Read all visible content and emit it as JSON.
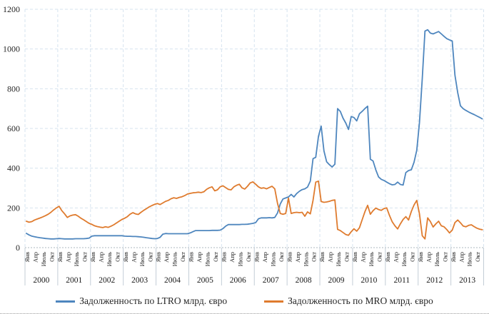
{
  "chart_data": {
    "type": "line",
    "title": "",
    "xlabel": "",
    "ylabel": "",
    "grid": true,
    "legend_position": "bottom",
    "y_axis": {
      "min": 0,
      "max": 1200,
      "step": 200,
      "ticks": [
        0,
        200,
        400,
        600,
        800,
        1000,
        1200
      ]
    },
    "quarter_labels": [
      "Янв",
      "Апр",
      "Июль",
      "Окт"
    ],
    "years": [
      2000,
      2001,
      2002,
      2003,
      2004,
      2005,
      2006,
      2007,
      2008,
      2009,
      2010,
      2011,
      2012,
      2013
    ],
    "x_unit": "month",
    "series": [
      {
        "name": "Задолженность по LTRO млрд. євро",
        "color": "#4e86be",
        "values": [
          72,
          64,
          58,
          55,
          52,
          50,
          48,
          46,
          45,
          44,
          44,
          45,
          46,
          45,
          44,
          44,
          44,
          44,
          45,
          45,
          45,
          45,
          46,
          48,
          58,
          60,
          60,
          60,
          60,
          60,
          60,
          60,
          60,
          60,
          60,
          60,
          58,
          57,
          57,
          56,
          56,
          55,
          54,
          52,
          50,
          48,
          46,
          45,
          46,
          52,
          68,
          71,
          70,
          70,
          70,
          70,
          70,
          70,
          70,
          70,
          74,
          80,
          86,
          86,
          86,
          86,
          86,
          86,
          87,
          87,
          87,
          88,
          96,
          108,
          116,
          116,
          116,
          116,
          116,
          117,
          117,
          118,
          120,
          122,
          126,
          145,
          150,
          150,
          150,
          151,
          150,
          152,
          175,
          220,
          245,
          250,
          255,
          268,
          255,
          272,
          284,
          292,
          296,
          305,
          335,
          448,
          455,
          560,
          612,
          487,
          432,
          418,
          406,
          420,
          700,
          686,
          652,
          627,
          595,
          660,
          655,
          638,
          674,
          686,
          700,
          712,
          445,
          436,
          392,
          356,
          344,
          338,
          330,
          322,
          316,
          318,
          330,
          318,
          315,
          378,
          388,
          392,
          430,
          490,
          630,
          850,
          1090,
          1097,
          1080,
          1076,
          1082,
          1088,
          1076,
          1064,
          1052,
          1046,
          1040,
          868,
          780,
          714,
          700,
          691,
          683,
          676,
          670,
          663,
          656,
          648
        ]
      },
      {
        "name": "Задолженность по MRO млрд. євро",
        "color": "#df7b2e",
        "values": [
          133,
          128,
          131,
          139,
          144,
          149,
          155,
          161,
          168,
          178,
          190,
          200,
          208,
          186,
          170,
          152,
          160,
          164,
          166,
          158,
          148,
          140,
          131,
          122,
          117,
          110,
          106,
          103,
          101,
          105,
          102,
          108,
          115,
          124,
          133,
          142,
          148,
          156,
          168,
          176,
          170,
          167,
          178,
          188,
          196,
          205,
          212,
          218,
          222,
          217,
          225,
          233,
          238,
          246,
          251,
          248,
          253,
          256,
          262,
          270,
          273,
          276,
          277,
          279,
          277,
          281,
          293,
          301,
          306,
          286,
          291,
          306,
          311,
          302,
          293,
          291,
          306,
          314,
          319,
          301,
          295,
          309,
          326,
          331,
          319,
          306,
          299,
          301,
          296,
          303,
          309,
          296,
          222,
          172,
          168,
          172,
          249,
          172,
          176,
          178,
          176,
          178,
          158,
          180,
          170,
          238,
          330,
          335,
          232,
          228,
          230,
          233,
          238,
          240,
          92,
          86,
          76,
          66,
          62,
          80,
          95,
          83,
          100,
          140,
          180,
          213,
          168,
          186,
          199,
          192,
          188,
          197,
          200,
          162,
          130,
          110,
          94,
          120,
          142,
          156,
          139,
          182,
          215,
          238,
          170,
          60,
          44,
          150,
          131,
          104,
          120,
          133,
          110,
          105,
          91,
          74,
          88,
          126,
          139,
          125,
          109,
          105,
          112,
          115,
          106,
          98,
          93,
          90
        ]
      }
    ]
  }
}
